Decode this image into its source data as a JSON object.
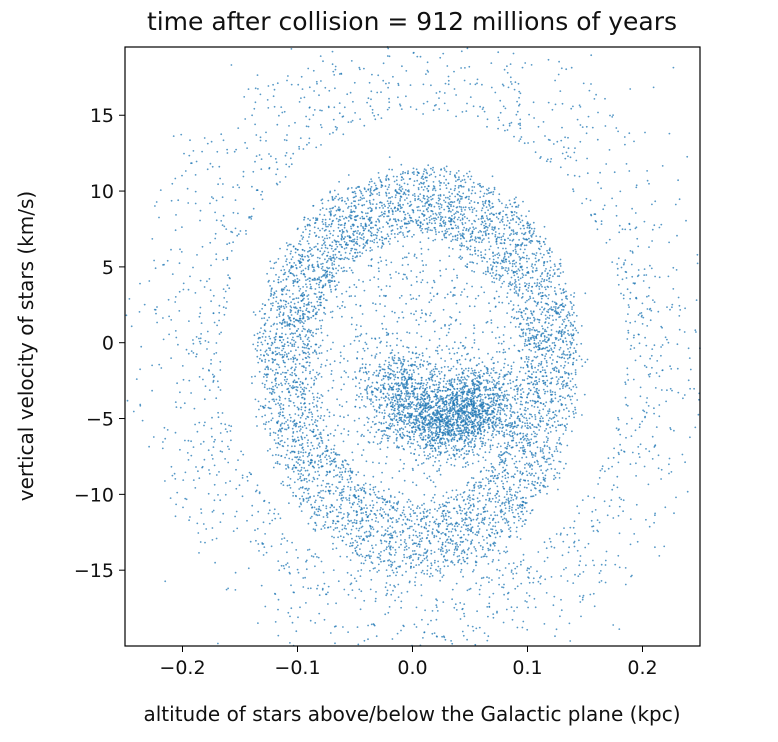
{
  "chart_data": {
    "type": "scatter",
    "title": "time after collision = 912 millions of years",
    "xlabel": "altitude of stars above/below the Galactic plane (kpc)",
    "ylabel": "vertical velocity of stars (km/s)",
    "xlim": [
      -0.25,
      0.25
    ],
    "ylim": [
      -20,
      19.5
    ],
    "xticks": [
      -0.2,
      -0.1,
      0.0,
      0.1,
      0.2
    ],
    "xtick_labels": [
      "−0.2",
      "−0.1",
      "0.0",
      "0.1",
      "0.2"
    ],
    "yticks": [
      15,
      10,
      5,
      0,
      -5,
      -10,
      -15
    ],
    "ytick_labels": [
      "15",
      "10",
      "5",
      "0",
      "−5",
      "−10",
      "−15"
    ],
    "grid": false,
    "marker_color": "#1f77b4",
    "structure": {
      "description_of_data": "phase spiral: dense outer ring plus an inner spiral arm wrapping into the center",
      "dense_ring": {
        "center": [
          0.005,
          -1.0
        ],
        "x_radius": 0.14,
        "y_radius_top": 12.5,
        "y_radius_bottom": 14.5
      },
      "outer_halo": {
        "x_extent": [
          -0.23,
          0.24
        ],
        "y_extent": [
          -18.5,
          17.5
        ]
      },
      "inner_arm_hook": {
        "x_extent": [
          -0.03,
          0.11
        ],
        "y_extent": [
          -7,
          1
        ]
      }
    }
  }
}
